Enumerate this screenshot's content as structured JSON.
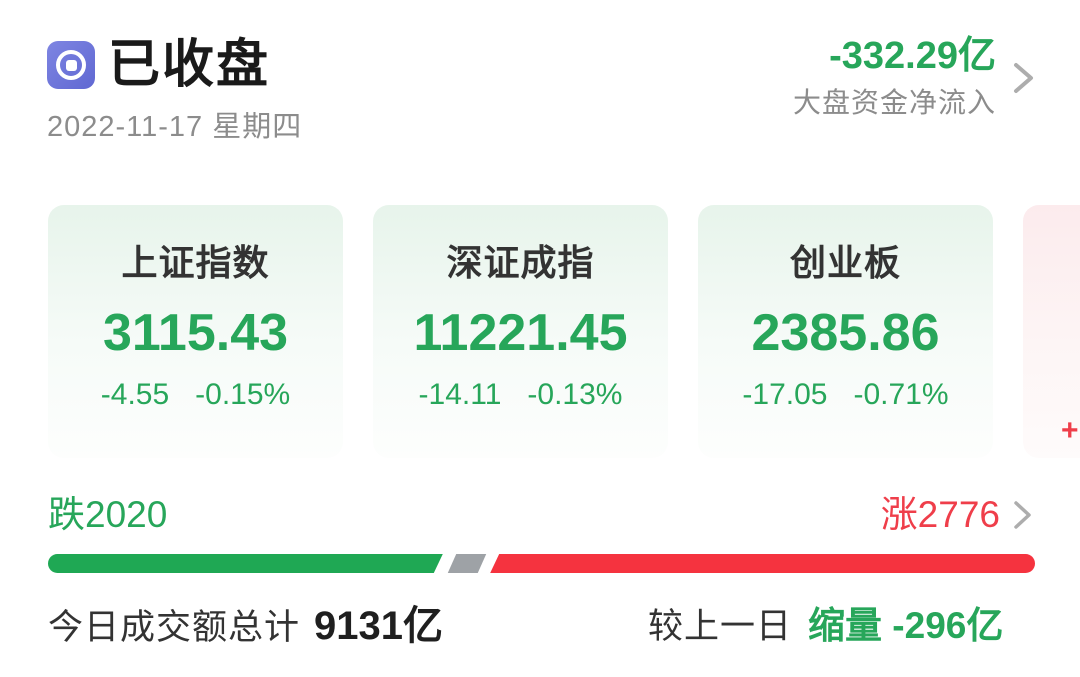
{
  "colors": {
    "green": "#27A65A",
    "red": "#EF3E4A",
    "bar_green": "#1FA854",
    "bar_flat": "#9EA2A6",
    "bar_red": "#F5333F",
    "icon_bg": "#6B72D8",
    "text_dark": "#1A1A1A",
    "text_gray": "#8C8C8C"
  },
  "header": {
    "status": "已收盘",
    "date": "2022-11-17 星期四"
  },
  "net_inflow": {
    "value": "-332.29亿",
    "label": "大盘资金净流入"
  },
  "indices": [
    {
      "name": "上证指数",
      "value": "3115.43",
      "change": "-4.55",
      "change_pct": "-0.15%"
    },
    {
      "name": "深证成指",
      "value": "11221.45",
      "change": "-14.11",
      "change_pct": "-0.13%"
    },
    {
      "name": "创业板",
      "value": "2385.86",
      "change": "-17.05",
      "change_pct": "-0.71%"
    },
    {
      "name": "",
      "value": "",
      "change": "+",
      "change_pct": ""
    }
  ],
  "breadth": {
    "down_label": "跌2020",
    "up_label": "涨2776",
    "down_count": 2020,
    "up_count": 2776,
    "bar": {
      "down_pct": 40.0,
      "flat_left_pct": 40.9,
      "flat_pct": 3.0,
      "up_left_pct": 44.8
    }
  },
  "turnover": {
    "label": "今日成交额总计",
    "value": "9131亿",
    "compare_label": "较上一日",
    "compare_value": "缩量 -296亿"
  }
}
